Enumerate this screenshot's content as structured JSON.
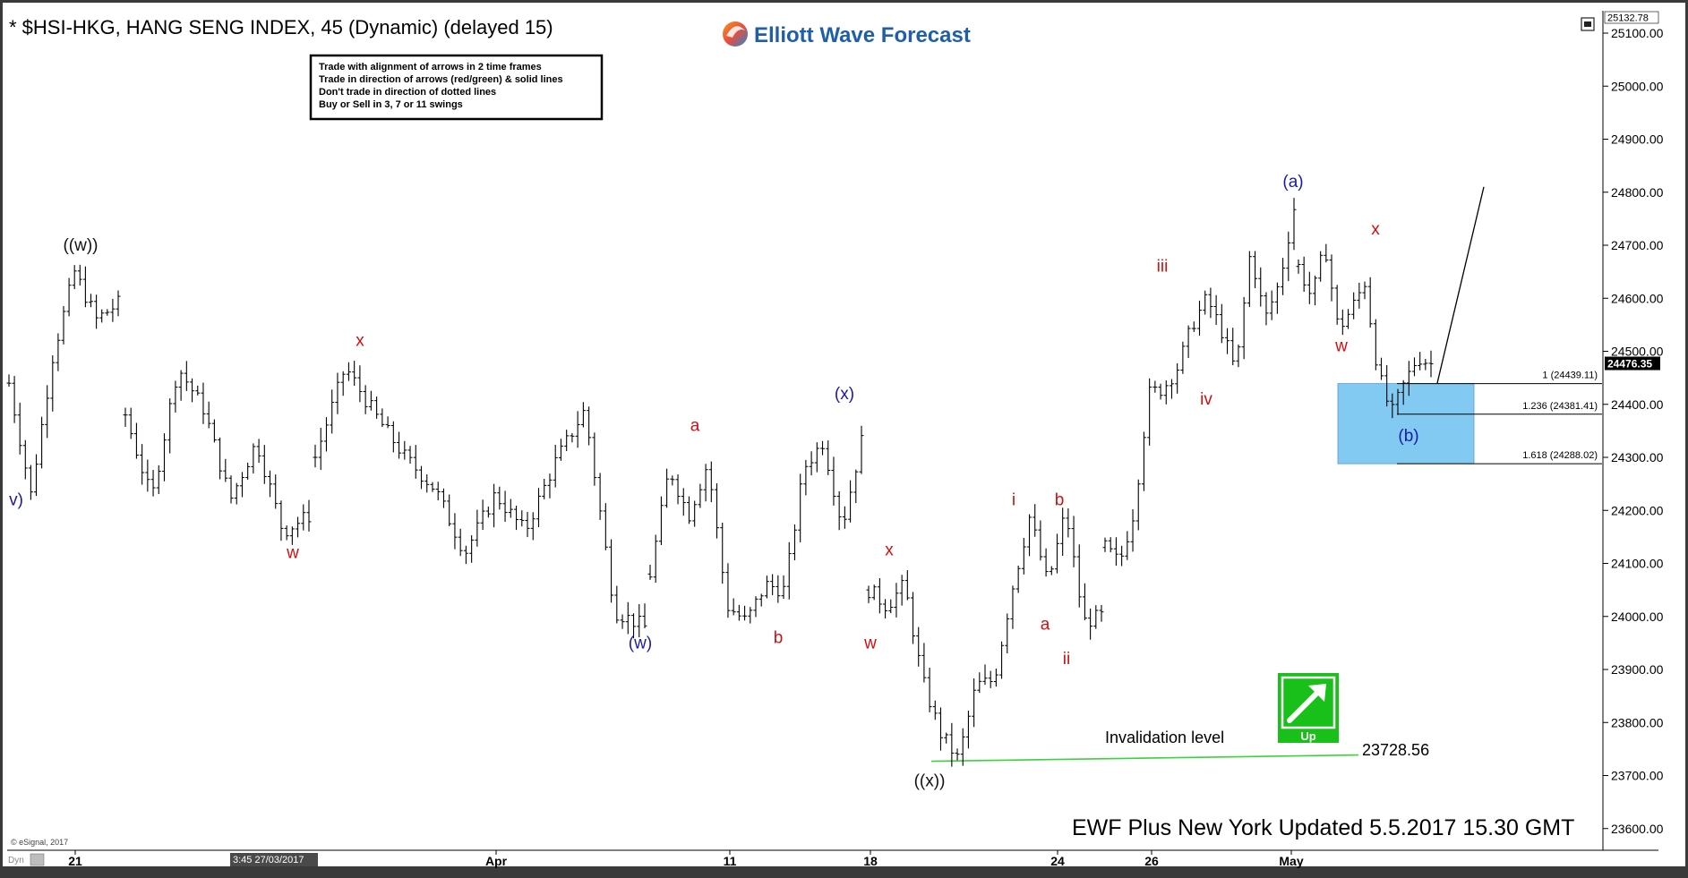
{
  "header": {
    "title": "* $HSI-HKG, HANG SENG INDEX, 45 (Dynamic) (delayed 15)",
    "logo_text": "Elliott Wave Forecast"
  },
  "rules_box": {
    "lines": [
      "Trade with alignment of arrows in 2 time frames",
      "Trade in direction of arrows (red/green) & solid lines",
      "Don't trade in direction of dotted lines",
      "Buy or Sell in 3, 7 or 11 swings"
    ]
  },
  "footer": {
    "updated": "EWF Plus New York Updated 5.5.2017 15.30 GMT",
    "copyright": "© eSignal, 2017",
    "cursor_time": "3:45 27/03/2017",
    "corner_label": "Dyn"
  },
  "up_badge": {
    "label": "Up",
    "color": "#19c019"
  },
  "invalidation": {
    "label": "Invalidation level",
    "value_label": "23728.56",
    "value": 23728.56,
    "color": "#3cd23c"
  },
  "box_zone": {
    "top": 24439.11,
    "bottom": 24288.02,
    "color": "#6ec1f0"
  },
  "price_tags": {
    "top": "25132.78",
    "last": "24476.35"
  },
  "colors": {
    "blue": "#1a1aa8",
    "red": "#d01010",
    "black": "#111111"
  },
  "chart_data": {
    "type": "bar",
    "title": "* $HSI-HKG, HANG SENG INDEX, 45 (Dynamic) (delayed 15)",
    "ylim": [
      23560,
      25140
    ],
    "y_ticks": [
      "25100.00",
      "25000.00",
      "24900.00",
      "24800.00",
      "24700.00",
      "24600.00",
      "24500.00",
      "24400.00",
      "24300.00",
      "24200.00",
      "24100.00",
      "24000.00",
      "23900.00",
      "23800.00",
      "23700.00",
      "23600.00"
    ],
    "x_ticks": [
      "21",
      "Apr",
      "11",
      "18",
      "24",
      "26",
      "May"
    ],
    "fib_levels": [
      {
        "label": "1 (24439.11)",
        "value": 24439.11
      },
      {
        "label": "1.236 (24381.41)",
        "value": 24381.41
      },
      {
        "label": "1.618 (24288.02)",
        "value": 24288.02
      }
    ],
    "wave_labels": [
      {
        "text": "v)",
        "color": "blue",
        "value": 24210
      },
      {
        "text": "((w))",
        "color": "black",
        "value": 24690
      },
      {
        "text": "w",
        "color": "red",
        "value": 24110
      },
      {
        "text": "x",
        "color": "red",
        "value": 24510
      },
      {
        "text": "(w)",
        "color": "blue",
        "value": 23940
      },
      {
        "text": "a",
        "color": "red",
        "value": 24350
      },
      {
        "text": "b",
        "color": "red",
        "value": 23950
      },
      {
        "text": "(x)",
        "color": "blue",
        "value": 24410
      },
      {
        "text": "x",
        "color": "red",
        "value": 24115
      },
      {
        "text": "w",
        "color": "red",
        "value": 23940
      },
      {
        "text": "((x))",
        "color": "black",
        "value": 23680
      },
      {
        "text": "i",
        "color": "red",
        "value": 24210
      },
      {
        "text": "b",
        "color": "red",
        "value": 24210
      },
      {
        "text": "a",
        "color": "red",
        "value": 23975
      },
      {
        "text": "ii",
        "color": "red",
        "value": 23910
      },
      {
        "text": "iii",
        "color": "red",
        "value": 24650
      },
      {
        "text": "iv",
        "color": "red",
        "value": 24400
      },
      {
        "text": "(a)",
        "color": "blue",
        "value": 24810
      },
      {
        "text": "x",
        "color": "red",
        "value": 24720
      },
      {
        "text": "w",
        "color": "red",
        "value": 24500
      },
      {
        "text": "(b)",
        "color": "blue",
        "value": 24330
      }
    ],
    "projection": {
      "from": 24440,
      "to": 24810
    },
    "series": [
      {
        "pivots": [
          [
            24440,
            24230,
            24490,
            24650,
            24560,
            24590
          ],
          [
            24380,
            24220,
            24470,
            24390,
            24220,
            24330,
            24160,
            24190
          ],
          [
            24300,
            24470,
            24380,
            24300,
            24240,
            24120,
            24230,
            24160,
            24290,
            24390,
            24010,
            23980
          ],
          [
            24080,
            24280,
            24190,
            24290,
            24020,
            23990,
            24060,
            24050,
            24280,
            24330,
            24170,
            24330
          ],
          [
            24050,
            24020,
            24060,
            23880,
            23780,
            23730,
            23870,
            23880,
            24050,
            24190,
            24060,
            24200,
            23990,
            24000
          ],
          [
            24130,
            24100,
            24200,
            24420,
            24430,
            24470,
            24550,
            24600,
            24540,
            24460,
            24690,
            24560,
            24630,
            24770
          ],
          [
            24660,
            24600,
            24700,
            24540,
            24580,
            24630,
            24460,
            24380,
            24440,
            24490,
            24476
          ]
        ]
      }
    ]
  }
}
